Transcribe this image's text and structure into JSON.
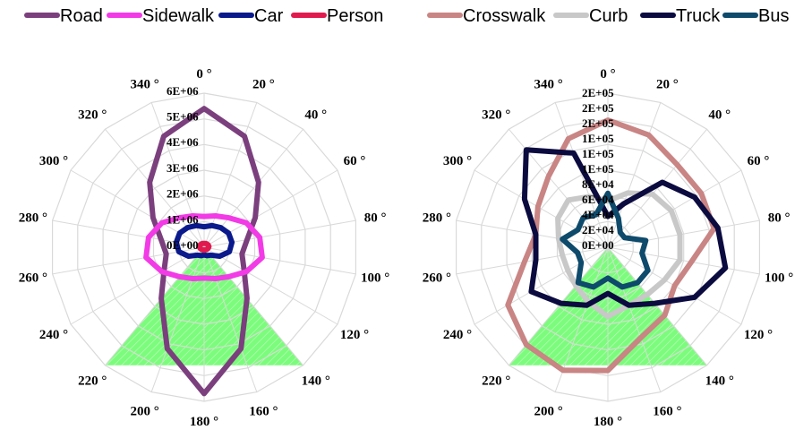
{
  "chart_data": [
    {
      "type": "radar",
      "angle_tick_labels": [
        "0 °",
        "20 °",
        "40 °",
        "60 °",
        "80 °",
        "100 °",
        "120 °",
        "140 °",
        "160 °",
        "180 °",
        "200 °",
        "220 °",
        "240 °",
        "260 °",
        "280 °",
        "300 °",
        "320 °",
        "340 °"
      ],
      "radial_tick_labels": [
        "0E+00",
        "1E+06",
        "2E+06",
        "3E+06",
        "4E+06",
        "5E+06",
        "6E+06"
      ],
      "rmax": 6000000,
      "grid": true,
      "field_of_view": {
        "from_deg": 140,
        "to_deg": 220,
        "radius": 6000000,
        "color": "#7CFC7C"
      },
      "legend": {
        "placement": "top"
      },
      "series": [
        {
          "name": "Road",
          "color": "#7B3F7E",
          "values": [
            5400000,
            4600000,
            3300000,
            2300000,
            1700000,
            1500000,
            1800000,
            2600000,
            4200000,
            5700000,
            4200000,
            2600000,
            1800000,
            1500000,
            1700000,
            2300000,
            3300000,
            4600000
          ]
        },
        {
          "name": "Sidewalk",
          "color": "#F23BE6",
          "values": [
            1200000,
            1300000,
            1500000,
            1900000,
            2200000,
            2300000,
            1900000,
            1500000,
            1300000,
            1200000,
            1300000,
            1500000,
            1900000,
            2300000,
            2200000,
            1900000,
            1500000,
            1300000
          ]
        },
        {
          "name": "Car",
          "color": "#0A1A8C",
          "values": [
            800000,
            900000,
            1000000,
            1100000,
            1100000,
            1000000,
            700000,
            400000,
            350000,
            300000,
            350000,
            400000,
            700000,
            1000000,
            1100000,
            1100000,
            1000000,
            900000
          ]
        },
        {
          "name": "Person",
          "color": "#E01A4F",
          "values": [
            150000,
            160000,
            170000,
            180000,
            190000,
            170000,
            140000,
            120000,
            110000,
            110000,
            110000,
            120000,
            140000,
            170000,
            190000,
            180000,
            170000,
            160000
          ]
        }
      ]
    },
    {
      "type": "radar",
      "angle_tick_labels": [
        "0 °",
        "20 °",
        "40 °",
        "60 °",
        "80 °",
        "100 °",
        "120 °",
        "140 °",
        "160 °",
        "180 °",
        "200 °",
        "220 °",
        "240 °",
        "260 °",
        "280 °",
        "300 °",
        "320 °",
        "340 °"
      ],
      "radial_tick_labels": [
        "0E+00",
        "2E+04",
        "4E+04",
        "6E+04",
        "8E+04",
        "1E+05",
        "1E+05",
        "1E+05",
        "2E+05",
        "2E+05",
        "2E+05"
      ],
      "rmax": 200000,
      "grid": true,
      "field_of_view": {
        "from_deg": 140,
        "to_deg": 220,
        "radius": 200000,
        "color": "#7CFC7C"
      },
      "legend": {
        "placement": "top"
      },
      "series": [
        {
          "name": "Crosswalk",
          "color": "#C98484",
          "values": [
            165000,
            155000,
            140000,
            140000,
            140000,
            110000,
            100000,
            115000,
            125000,
            160000,
            170000,
            165000,
            150000,
            110000,
            95000,
            105000,
            120000,
            150000
          ]
        },
        {
          "name": "Curb",
          "color": "#C8C8C8",
          "values": [
            60000,
            75000,
            90000,
            95000,
            95000,
            95000,
            85000,
            80000,
            80000,
            90000,
            75000,
            65000,
            60000,
            60000,
            65000,
            75000,
            80000,
            70000
          ]
        },
        {
          "name": "Truck",
          "color": "#0B0B40",
          "values": [
            40000,
            60000,
            110000,
            130000,
            145000,
            155000,
            130000,
            95000,
            80000,
            60000,
            80000,
            95000,
            115000,
            95000,
            95000,
            125000,
            165000,
            130000
          ]
        },
        {
          "name": "Bus",
          "color": "#0E4A6B",
          "values": [
            70000,
            40000,
            25000,
            25000,
            50000,
            45000,
            60000,
            60000,
            55000,
            40000,
            55000,
            60000,
            40000,
            40000,
            60000,
            45000,
            50000,
            45000
          ]
        }
      ]
    }
  ]
}
